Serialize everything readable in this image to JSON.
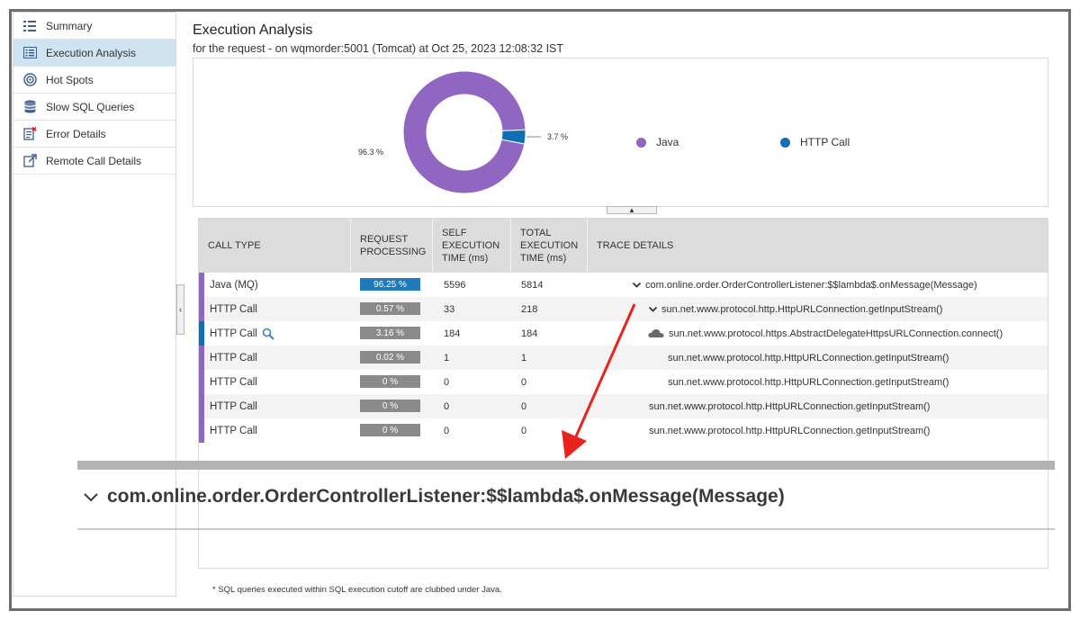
{
  "sidebar": {
    "items": [
      {
        "label": "Summary",
        "icon": "list-icon",
        "active": false
      },
      {
        "label": "Execution Analysis",
        "icon": "execution-list-icon",
        "active": true
      },
      {
        "label": "Hot Spots",
        "icon": "target-icon",
        "active": false
      },
      {
        "label": "Slow SQL Queries",
        "icon": "database-icon",
        "active": false
      },
      {
        "label": "Error Details",
        "icon": "error-doc-icon",
        "active": false
      },
      {
        "label": "Remote Call Details",
        "icon": "external-link-icon",
        "active": false
      }
    ]
  },
  "header": {
    "title": "Execution Analysis",
    "subtitle": "for the request - on wqmorder:5001 (Tomcat) at Oct 25, 2023 12:08:32 IST"
  },
  "chart_data": {
    "type": "pie",
    "categories": [
      "Java",
      "HTTP Call"
    ],
    "values": [
      96.3,
      3.7
    ],
    "slice_labels": [
      "96.3 %",
      "3.7 %"
    ],
    "colors": [
      "#9166c2",
      "#0f6fb3"
    ],
    "legend": [
      "Java",
      "HTTP Call"
    ]
  },
  "table": {
    "headers": {
      "call_type": "CALL TYPE",
      "request_processing_1": "REQUEST",
      "request_processing_2": "PROCESSING",
      "self_1": "SELF",
      "self_2": "EXECUTION",
      "self_3": "TIME (ms)",
      "total_1": "TOTAL",
      "total_2": "EXECUTION",
      "total_3": "TIME (ms)",
      "trace": "TRACE DETAILS"
    },
    "rows": [
      {
        "call_type": "Java (MQ)",
        "pct": "96.25 %",
        "pct_value": 96.25,
        "self": "5596",
        "total": "5814",
        "trace": "com.online.order.OrderControllerListener:$$lambda$.onMessage(Message)",
        "marker": "chevron",
        "bar_color": "#9166c2",
        "pct_color": "#1e7ab8"
      },
      {
        "call_type": "HTTP Call",
        "pct": "0.57 %",
        "pct_value": 0.57,
        "self": "33",
        "total": "218",
        "trace": "sun.net.www.protocol.http.HttpURLConnection.getInputStream()",
        "marker": "chevron",
        "bar_color": "#9166c2",
        "pct_color": "#8a8a8a"
      },
      {
        "call_type": "HTTP Call",
        "pct": "3.16 %",
        "pct_value": 3.16,
        "self": "184",
        "total": "184",
        "trace": "sun.net.www.protocol.https.AbstractDelegateHttpsURLConnection.connect()",
        "marker": "cloud",
        "bar_color": "#0f6fb3",
        "pct_color": "#8a8a8a",
        "search": true
      },
      {
        "call_type": "HTTP Call",
        "pct": "0.02 %",
        "pct_value": 0.02,
        "self": "1",
        "total": "1",
        "trace": "sun.net.www.protocol.http.HttpURLConnection.getInputStream()",
        "marker": "none",
        "bar_color": "#9166c2",
        "pct_color": "#8a8a8a"
      },
      {
        "call_type": "HTTP Call",
        "pct": "0 %",
        "pct_value": 0,
        "self": "0",
        "total": "0",
        "trace": "sun.net.www.protocol.http.HttpURLConnection.getInputStream()",
        "marker": "none",
        "bar_color": "#9166c2",
        "pct_color": "#8a8a8a"
      },
      {
        "call_type": "HTTP Call",
        "pct": "0 %",
        "pct_value": 0,
        "self": "0",
        "total": "0",
        "trace": "sun.net.www.protocol.http.HttpURLConnection.getInputStream()",
        "marker": "none",
        "bar_color": "#9166c2",
        "pct_color": "#8a8a8a"
      },
      {
        "call_type": "HTTP Call",
        "pct": "0 %",
        "pct_value": 0,
        "self": "0",
        "total": "0",
        "trace": "sun.net.www.protocol.http.HttpURLConnection.getInputStream()",
        "marker": "none",
        "bar_color": "#9166c2",
        "pct_color": "#8a8a8a"
      }
    ]
  },
  "zoom": {
    "text": "com.online.order.OrderControllerListener:$$lambda$.onMessage(Message)"
  },
  "footnote": "* SQL queries executed within SQL execution cutoff are clubbed under Java.",
  "annotation_color": "#e8231d"
}
